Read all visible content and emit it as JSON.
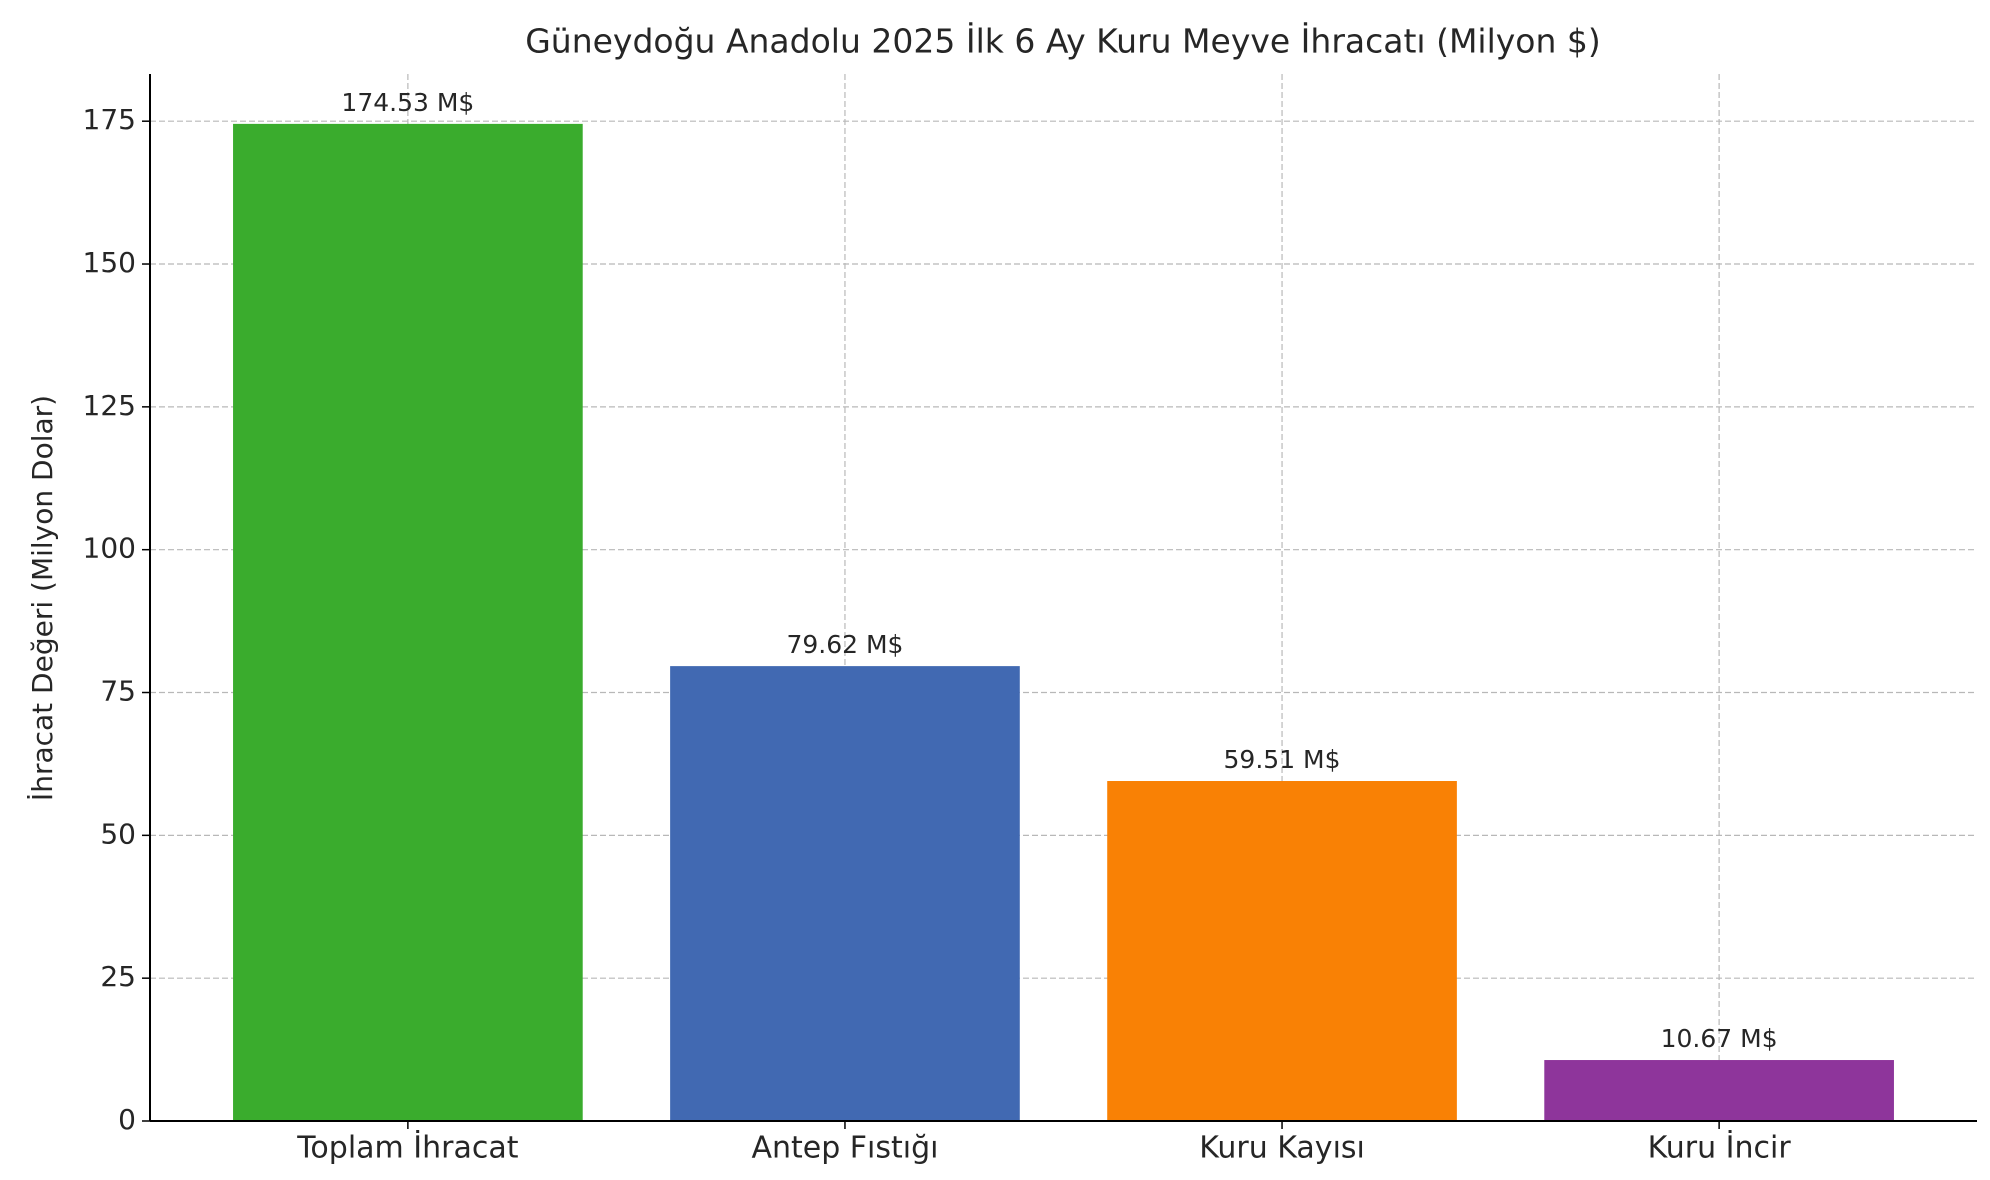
{
  "chart_data": {
    "type": "bar",
    "title": "Güneydoğu Anadolu 2025 İlk 6 Ay Kuru Meyve İhracatı (Milyon $)",
    "y_label": "İhracat Değeri (Milyon Dolar)",
    "categories": [
      "Toplam İhracat",
      "Antep Fıstığı",
      "Kuru Kayısı",
      "Kuru İncir"
    ],
    "values": [
      174.53,
      79.62,
      59.51,
      10.67
    ],
    "value_labels": [
      "174.53 M$",
      "79.62 M$",
      "59.51 M$",
      "10.67 M$"
    ],
    "colors": [
      "#3aac2d",
      "#4169b2",
      "#f98105",
      "#8e359b"
    ],
    "ylim": [
      0,
      183.26
    ],
    "yticks": [
      0,
      25,
      50,
      75,
      100,
      125,
      150,
      175
    ],
    "grid": true
  }
}
